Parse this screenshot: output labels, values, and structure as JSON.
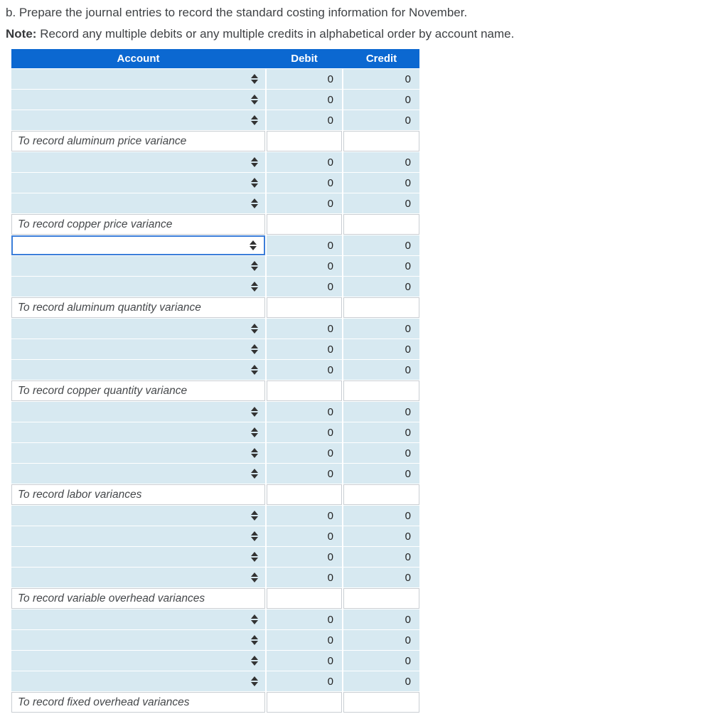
{
  "page": {
    "instruction": "b. Prepare the journal entries to record the standard costing information for November.",
    "note_label": "Note:",
    "note_text": "Record any multiple debits or any multiple credits in alphabetical order by account name."
  },
  "table": {
    "headers": {
      "account": "Account",
      "debit": "Debit",
      "credit": "Credit"
    },
    "groups": [
      {
        "memo": "To record aluminum price variance",
        "rows": [
          {
            "debit": "0",
            "credit": "0",
            "focused": false
          },
          {
            "debit": "0",
            "credit": "0",
            "focused": false
          },
          {
            "debit": "0",
            "credit": "0",
            "focused": false
          }
        ]
      },
      {
        "memo": "To record copper price variance",
        "rows": [
          {
            "debit": "0",
            "credit": "0",
            "focused": false
          },
          {
            "debit": "0",
            "credit": "0",
            "focused": false
          },
          {
            "debit": "0",
            "credit": "0",
            "focused": false
          }
        ]
      },
      {
        "memo": "To record aluminum quantity variance",
        "rows": [
          {
            "debit": "0",
            "credit": "0",
            "focused": true
          },
          {
            "debit": "0",
            "credit": "0",
            "focused": false
          },
          {
            "debit": "0",
            "credit": "0",
            "focused": false
          }
        ]
      },
      {
        "memo": "To record copper quantity variance",
        "rows": [
          {
            "debit": "0",
            "credit": "0",
            "focused": false
          },
          {
            "debit": "0",
            "credit": "0",
            "focused": false
          },
          {
            "debit": "0",
            "credit": "0",
            "focused": false
          }
        ]
      },
      {
        "memo": "To record labor variances",
        "rows": [
          {
            "debit": "0",
            "credit": "0",
            "focused": false
          },
          {
            "debit": "0",
            "credit": "0",
            "focused": false
          },
          {
            "debit": "0",
            "credit": "0",
            "focused": false
          },
          {
            "debit": "0",
            "credit": "0",
            "focused": false
          }
        ]
      },
      {
        "memo": "To record variable overhead variances",
        "rows": [
          {
            "debit": "0",
            "credit": "0",
            "focused": false
          },
          {
            "debit": "0",
            "credit": "0",
            "focused": false
          },
          {
            "debit": "0",
            "credit": "0",
            "focused": false
          },
          {
            "debit": "0",
            "credit": "0",
            "focused": false
          }
        ]
      },
      {
        "memo": "To record fixed overhead variances",
        "rows": [
          {
            "debit": "0",
            "credit": "0",
            "focused": false
          },
          {
            "debit": "0",
            "credit": "0",
            "focused": false
          },
          {
            "debit": "0",
            "credit": "0",
            "focused": false
          },
          {
            "debit": "0",
            "credit": "0",
            "focused": false
          }
        ]
      }
    ]
  },
  "icons": {
    "account_dropdown": "up-down-triangles"
  },
  "colors": {
    "header_bg": "#0b68d1",
    "cell_bg": "#d7e9f1",
    "focus_border": "#3b7ed9",
    "memo_border": "#c9ced3",
    "icon": "#333333"
  }
}
